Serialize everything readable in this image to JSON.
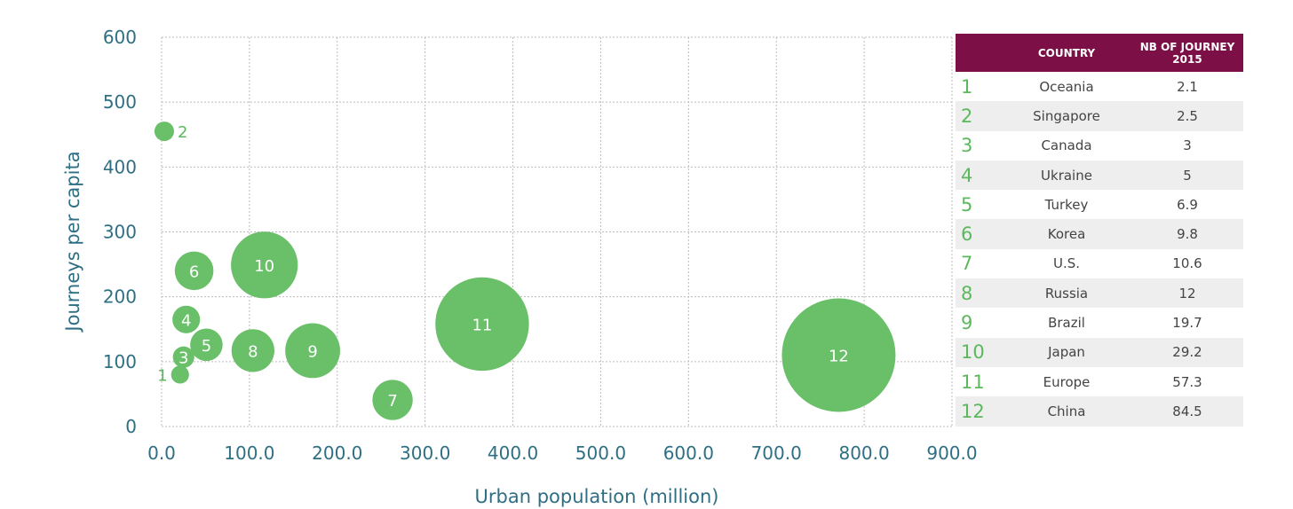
{
  "chart_data": {
    "type": "scatter",
    "xlabel": "Urban population (million)",
    "ylabel": "Journeys per capita",
    "xlim": [
      0,
      900
    ],
    "ylim": [
      0,
      600
    ],
    "x_ticks": [
      "0.0",
      "100.0",
      "200.0",
      "300.0",
      "400.0",
      "500.0",
      "600.0",
      "700.0",
      "800.0",
      "900.0"
    ],
    "y_ticks": [
      "0",
      "100",
      "200",
      "300",
      "400",
      "500",
      "600"
    ],
    "grid": true,
    "bubble_color": "#6abf69",
    "points": [
      {
        "label": "1",
        "x": 21,
        "y": 80,
        "size": 2.1
      },
      {
        "label": "2",
        "x": 3,
        "y": 455,
        "size": 2.5
      },
      {
        "label": "3",
        "x": 25,
        "y": 107,
        "size": 3
      },
      {
        "label": "4",
        "x": 28,
        "y": 165,
        "size": 5
      },
      {
        "label": "5",
        "x": 51,
        "y": 126,
        "size": 6.9
      },
      {
        "label": "6",
        "x": 37,
        "y": 240,
        "size": 9.8
      },
      {
        "label": "7",
        "x": 263,
        "y": 41,
        "size": 10.6
      },
      {
        "label": "8",
        "x": 104,
        "y": 117,
        "size": 12
      },
      {
        "label": "9",
        "x": 172,
        "y": 117,
        "size": 19.7
      },
      {
        "label": "10",
        "x": 117,
        "y": 249,
        "size": 29.2
      },
      {
        "label": "11",
        "x": 365,
        "y": 158,
        "size": 57.3
      },
      {
        "label": "12",
        "x": 771,
        "y": 110,
        "size": 84.5
      }
    ]
  },
  "table": {
    "header_color": "#7d0f47",
    "number_color": "#5cb85c",
    "col_country": "COUNTRY",
    "col_value_line1": "NB OF JOURNEY",
    "col_value_line2": "2015",
    "rows": [
      {
        "num": "1",
        "country": "Oceania",
        "value": "2.1"
      },
      {
        "num": "2",
        "country": "Singapore",
        "value": "2.5"
      },
      {
        "num": "3",
        "country": "Canada",
        "value": "3"
      },
      {
        "num": "4",
        "country": "Ukraine",
        "value": "5"
      },
      {
        "num": "5",
        "country": "Turkey",
        "value": "6.9"
      },
      {
        "num": "6",
        "country": "Korea",
        "value": "9.8"
      },
      {
        "num": "7",
        "country": "U.S.",
        "value": "10.6"
      },
      {
        "num": "8",
        "country": "Russia",
        "value": "12"
      },
      {
        "num": "9",
        "country": "Brazil",
        "value": "19.7"
      },
      {
        "num": "10",
        "country": "Japan",
        "value": "29.2"
      },
      {
        "num": "11",
        "country": "Europe",
        "value": "57.3"
      },
      {
        "num": "12",
        "country": "China",
        "value": "84.5"
      }
    ]
  }
}
